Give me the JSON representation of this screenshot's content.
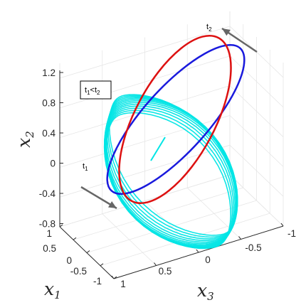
{
  "chart_data": {
    "type": "line",
    "title": "",
    "projection": "3d",
    "xlabel": "x",
    "xlabel_sub": "1",
    "ylabel": "x",
    "ylabel_sub": "3",
    "zlabel": "x",
    "zlabel_sub": "2",
    "axes_order": [
      "x1",
      "x3",
      "x2"
    ],
    "x1_ticks": [
      "1",
      "0.5",
      "0",
      "-0.5",
      "-1"
    ],
    "x3_ticks": [
      "1",
      "0.5",
      "0",
      "-0.5",
      "-1"
    ],
    "x2_ticks": [
      "1.2",
      "0.8",
      "0.4",
      "0",
      "-0.4",
      "-0.8"
    ],
    "x1_lim": [
      -1,
      1
    ],
    "x3_lim": [
      -1,
      1
    ],
    "x2_lim": [
      -0.8,
      1.4
    ],
    "grid": true,
    "series": [
      {
        "kind": "trajectory",
        "color": "#00e5e5",
        "loops": 12
      },
      {
        "kind": "ellipse",
        "color": "#dd1111"
      },
      {
        "kind": "ellipse",
        "color": "#1a1add"
      }
    ],
    "annotations": {
      "legend_box": {
        "text": "t",
        "sub1": "1",
        "op": "<",
        "t2": "t",
        "sub2": "2"
      },
      "t1": {
        "text": "t",
        "sub": "1"
      },
      "t2": {
        "text": "t",
        "sub": "2"
      }
    },
    "arrow_color": "#666666"
  }
}
